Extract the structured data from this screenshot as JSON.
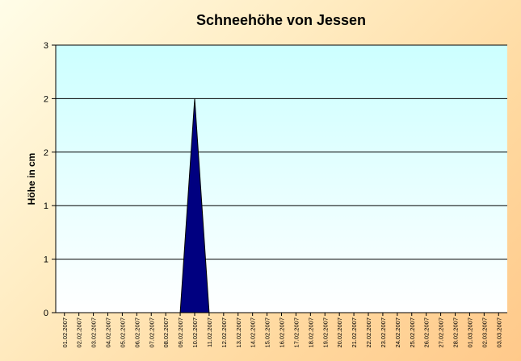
{
  "chart_data": {
    "type": "area",
    "title": "Schneehöhe von Jessen",
    "xlabel": "",
    "ylabel": "Höhe in cm",
    "y_tick_labels": [
      "0",
      "1",
      "1",
      "2",
      "2",
      "3"
    ],
    "ylim": [
      0,
      2.5
    ],
    "grid": true,
    "legend": "none",
    "colors": {
      "area_fill": "#000080",
      "plot_bg_top": "#ccffff",
      "plot_bg_bottom": "#ffffff",
      "gridline": "#000000"
    },
    "categories": [
      "01.02.2007",
      "02.02.2007",
      "03.02.2007",
      "04.02.2007",
      "05.02.2007",
      "06.02.2007",
      "07.02.2007",
      "08.02.2007",
      "09.02.2007",
      "10.02.2007",
      "11.02.2007",
      "12.02.2007",
      "13.02.2007",
      "14.02.2007",
      "15.02.2007",
      "16.02.2007",
      "17.02.2007",
      "18.02.2007",
      "19.02.2007",
      "20.02.2007",
      "21.02.2007",
      "22.02.2007",
      "23.02.2007",
      "24.02.2007",
      "25.02.2007",
      "26.02.2007",
      "27.02.2007",
      "28.02.2007",
      "01.03.2007",
      "02.03.2007",
      "03.03.2007"
    ],
    "series": [
      {
        "values": [
          0,
          0,
          0,
          0,
          0,
          0,
          0,
          0,
          0,
          2,
          0,
          0,
          0,
          0,
          0,
          0,
          0,
          0,
          0,
          0,
          0,
          0,
          0,
          0,
          0,
          0,
          0,
          0,
          0,
          0,
          0
        ]
      }
    ]
  }
}
